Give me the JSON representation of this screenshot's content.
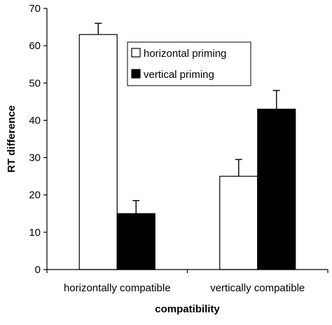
{
  "chart_data": {
    "type": "bar",
    "title": "",
    "xlabel": "compatibility",
    "ylabel": "RT difference",
    "ylim": [
      0,
      70
    ],
    "yticks": [
      0,
      10,
      20,
      30,
      40,
      50,
      60,
      70
    ],
    "categories": [
      "horizontally compatible",
      "vertically compatible"
    ],
    "series": [
      {
        "name": "horizontal priming",
        "color": "#ffffff",
        "values": [
          63,
          25
        ],
        "error_upper": [
          66,
          29.5
        ]
      },
      {
        "name": "vertical priming",
        "color": "#000000",
        "values": [
          15,
          43
        ],
        "error_upper": [
          18.5,
          48
        ]
      }
    ],
    "legend": "top-right",
    "grid": false
  }
}
